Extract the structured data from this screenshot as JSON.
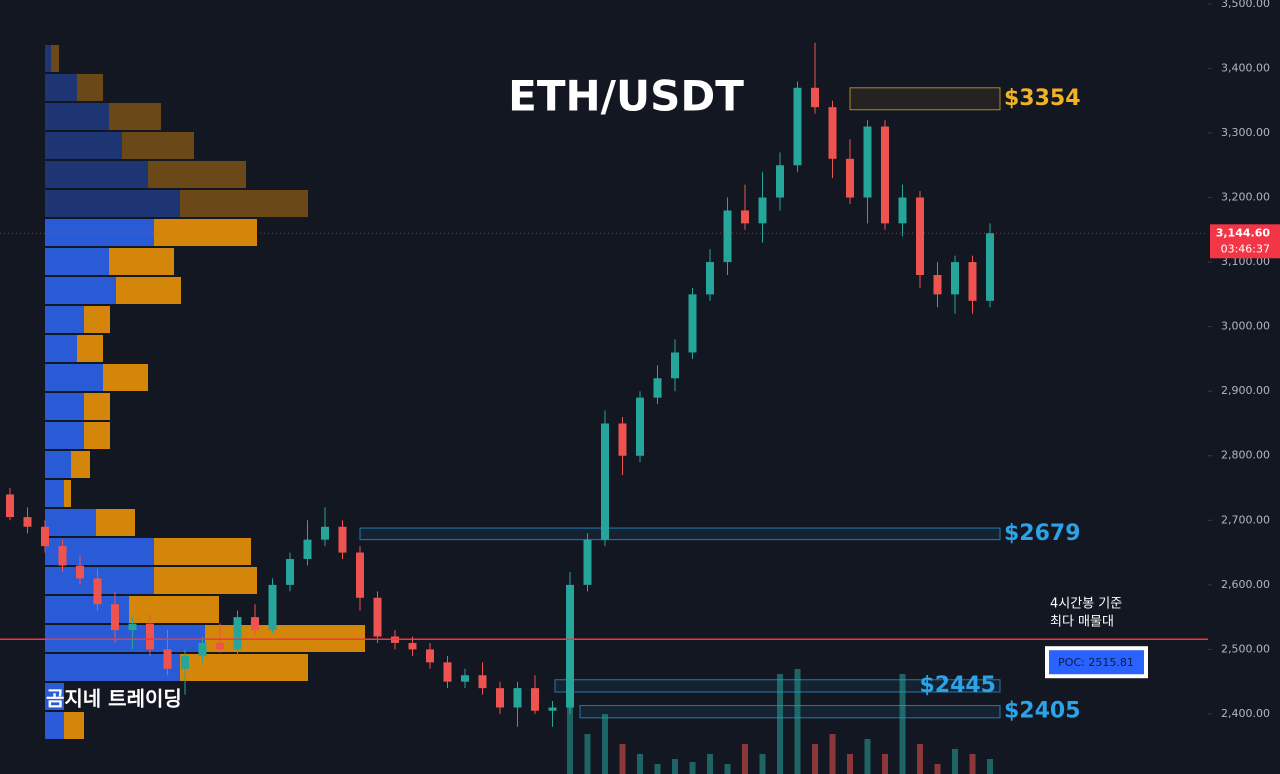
{
  "chart_data": {
    "type": "candlestick",
    "title": "ETH/USDT",
    "watermark": "곰지네 트레이딩",
    "ylim": [
      2307,
      3506
    ],
    "yticks": [
      {
        "value": 2400,
        "label": "2,400.00"
      },
      {
        "value": 2500,
        "label": "2,500.00"
      },
      {
        "value": 2600,
        "label": "2,600.00"
      },
      {
        "value": 2700,
        "label": "2,700.00"
      },
      {
        "value": 2800,
        "label": "2,800.00"
      },
      {
        "value": 2900,
        "label": "2,900.00"
      },
      {
        "value": 3000,
        "label": "3,000.00"
      },
      {
        "value": 3100,
        "label": "3,100.00"
      },
      {
        "value": 3200,
        "label": "3,200.00"
      },
      {
        "value": 3300,
        "label": "3,300.00"
      },
      {
        "value": 3400,
        "label": "3,400.00"
      },
      {
        "value": 3500,
        "label": "3,500.00"
      }
    ],
    "up_color": "#26a69a",
    "down_color": "#ef5350",
    "candles": [
      [
        2740,
        2750,
        2700,
        2705
      ],
      [
        2705,
        2720,
        2680,
        2690
      ],
      [
        2690,
        2700,
        2650,
        2660
      ],
      [
        2660,
        2670,
        2620,
        2630
      ],
      [
        2630,
        2645,
        2600,
        2610
      ],
      [
        2610,
        2625,
        2560,
        2570
      ],
      [
        2570,
        2590,
        2510,
        2530
      ],
      [
        2530,
        2550,
        2500,
        2540
      ],
      [
        2540,
        2555,
        2490,
        2500
      ],
      [
        2500,
        2530,
        2460,
        2470
      ],
      [
        2470,
        2500,
        2430,
        2490
      ],
      [
        2490,
        2520,
        2480,
        2510
      ],
      [
        2510,
        2540,
        2495,
        2500
      ],
      [
        2500,
        2560,
        2490,
        2550
      ],
      [
        2550,
        2570,
        2520,
        2530
      ],
      [
        2530,
        2610,
        2525,
        2600
      ],
      [
        2600,
        2650,
        2590,
        2640
      ],
      [
        2640,
        2700,
        2630,
        2670
      ],
      [
        2670,
        2720,
        2660,
        2690
      ],
      [
        2690,
        2700,
        2640,
        2650
      ],
      [
        2650,
        2660,
        2560,
        2580
      ],
      [
        2580,
        2590,
        2510,
        2520
      ],
      [
        2520,
        2530,
        2500,
        2510
      ],
      [
        2510,
        2520,
        2490,
        2500
      ],
      [
        2500,
        2510,
        2470,
        2480
      ],
      [
        2480,
        2490,
        2440,
        2450
      ],
      [
        2450,
        2470,
        2440,
        2460
      ],
      [
        2460,
        2480,
        2430,
        2440
      ],
      [
        2440,
        2450,
        2400,
        2410
      ],
      [
        2410,
        2450,
        2380,
        2440
      ],
      [
        2440,
        2460,
        2400,
        2405
      ],
      [
        2405,
        2420,
        2380,
        2410
      ],
      [
        2410,
        2620,
        2400,
        2600
      ],
      [
        2600,
        2680,
        2590,
        2670
      ],
      [
        2670,
        2870,
        2660,
        2850
      ],
      [
        2850,
        2860,
        2770,
        2800
      ],
      [
        2800,
        2900,
        2790,
        2890
      ],
      [
        2890,
        2940,
        2880,
        2920
      ],
      [
        2920,
        2980,
        2900,
        2960
      ],
      [
        2960,
        3060,
        2950,
        3050
      ],
      [
        3050,
        3120,
        3040,
        3100
      ],
      [
        3100,
        3200,
        3080,
        3180
      ],
      [
        3180,
        3220,
        3150,
        3160
      ],
      [
        3160,
        3240,
        3130,
        3200
      ],
      [
        3200,
        3270,
        3180,
        3250
      ],
      [
        3250,
        3380,
        3240,
        3370
      ],
      [
        3370,
        3440,
        3330,
        3340
      ],
      [
        3340,
        3350,
        3230,
        3260
      ],
      [
        3260,
        3290,
        3190,
        3200
      ],
      [
        3200,
        3320,
        3160,
        3310
      ],
      [
        3310,
        3320,
        3150,
        3160
      ],
      [
        3160,
        3220,
        3140,
        3200
      ],
      [
        3200,
        3210,
        3060,
        3080
      ],
      [
        3080,
        3100,
        3030,
        3050
      ],
      [
        3050,
        3110,
        3020,
        3100
      ],
      [
        3100,
        3110,
        3020,
        3040
      ],
      [
        3040,
        3160,
        3030,
        3144.6
      ]
    ],
    "volumes": [
      null,
      null,
      null,
      null,
      null,
      null,
      null,
      null,
      null,
      null,
      null,
      null,
      null,
      null,
      null,
      null,
      null,
      null,
      null,
      null,
      null,
      null,
      null,
      null,
      null,
      null,
      null,
      null,
      null,
      null,
      null,
      null,
      100,
      40,
      60,
      30,
      20,
      10,
      15,
      12,
      20,
      10,
      30,
      20,
      100,
      105,
      30,
      40,
      20,
      35,
      20,
      100,
      30,
      10,
      25,
      20,
      15
    ],
    "volume_profile": {
      "buy_color": "#2a5bd7",
      "sell_color": "#d4860b",
      "buy": [
        6,
        32,
        64,
        77,
        103,
        135,
        109,
        64,
        71,
        39,
        32,
        58,
        39,
        39,
        26,
        19,
        51,
        109,
        109,
        84,
        160,
        135,
        19,
        19
      ],
      "sell": [
        8,
        26,
        52,
        72,
        98,
        128,
        103,
        65,
        65,
        26,
        26,
        45,
        26,
        26,
        19,
        7,
        39,
        97,
        103,
        90,
        160,
        128,
        0,
        20
      ]
    },
    "zones": [
      {
        "label": "$3354",
        "top": 3370,
        "bottom": 3336,
        "color": "#f0b323"
      },
      {
        "label": "$2679",
        "top": 2688,
        "bottom": 2670,
        "color": "#2aa3e8"
      },
      {
        "label": "$2445",
        "top": 2453,
        "bottom": 2434,
        "color": "#2aa3e8"
      },
      {
        "label": "$2405",
        "top": 2413,
        "bottom": 2394,
        "color": "#2aa3e8"
      }
    ],
    "poc": {
      "value": 2515.81,
      "label": "POC: 2515.81",
      "note": [
        "4시간봉 기준",
        "최다 매물대"
      ],
      "color": "#f23645"
    },
    "last_price": {
      "value": 3144.6,
      "label": "3,144.60",
      "countdown": "03:46:37"
    }
  }
}
